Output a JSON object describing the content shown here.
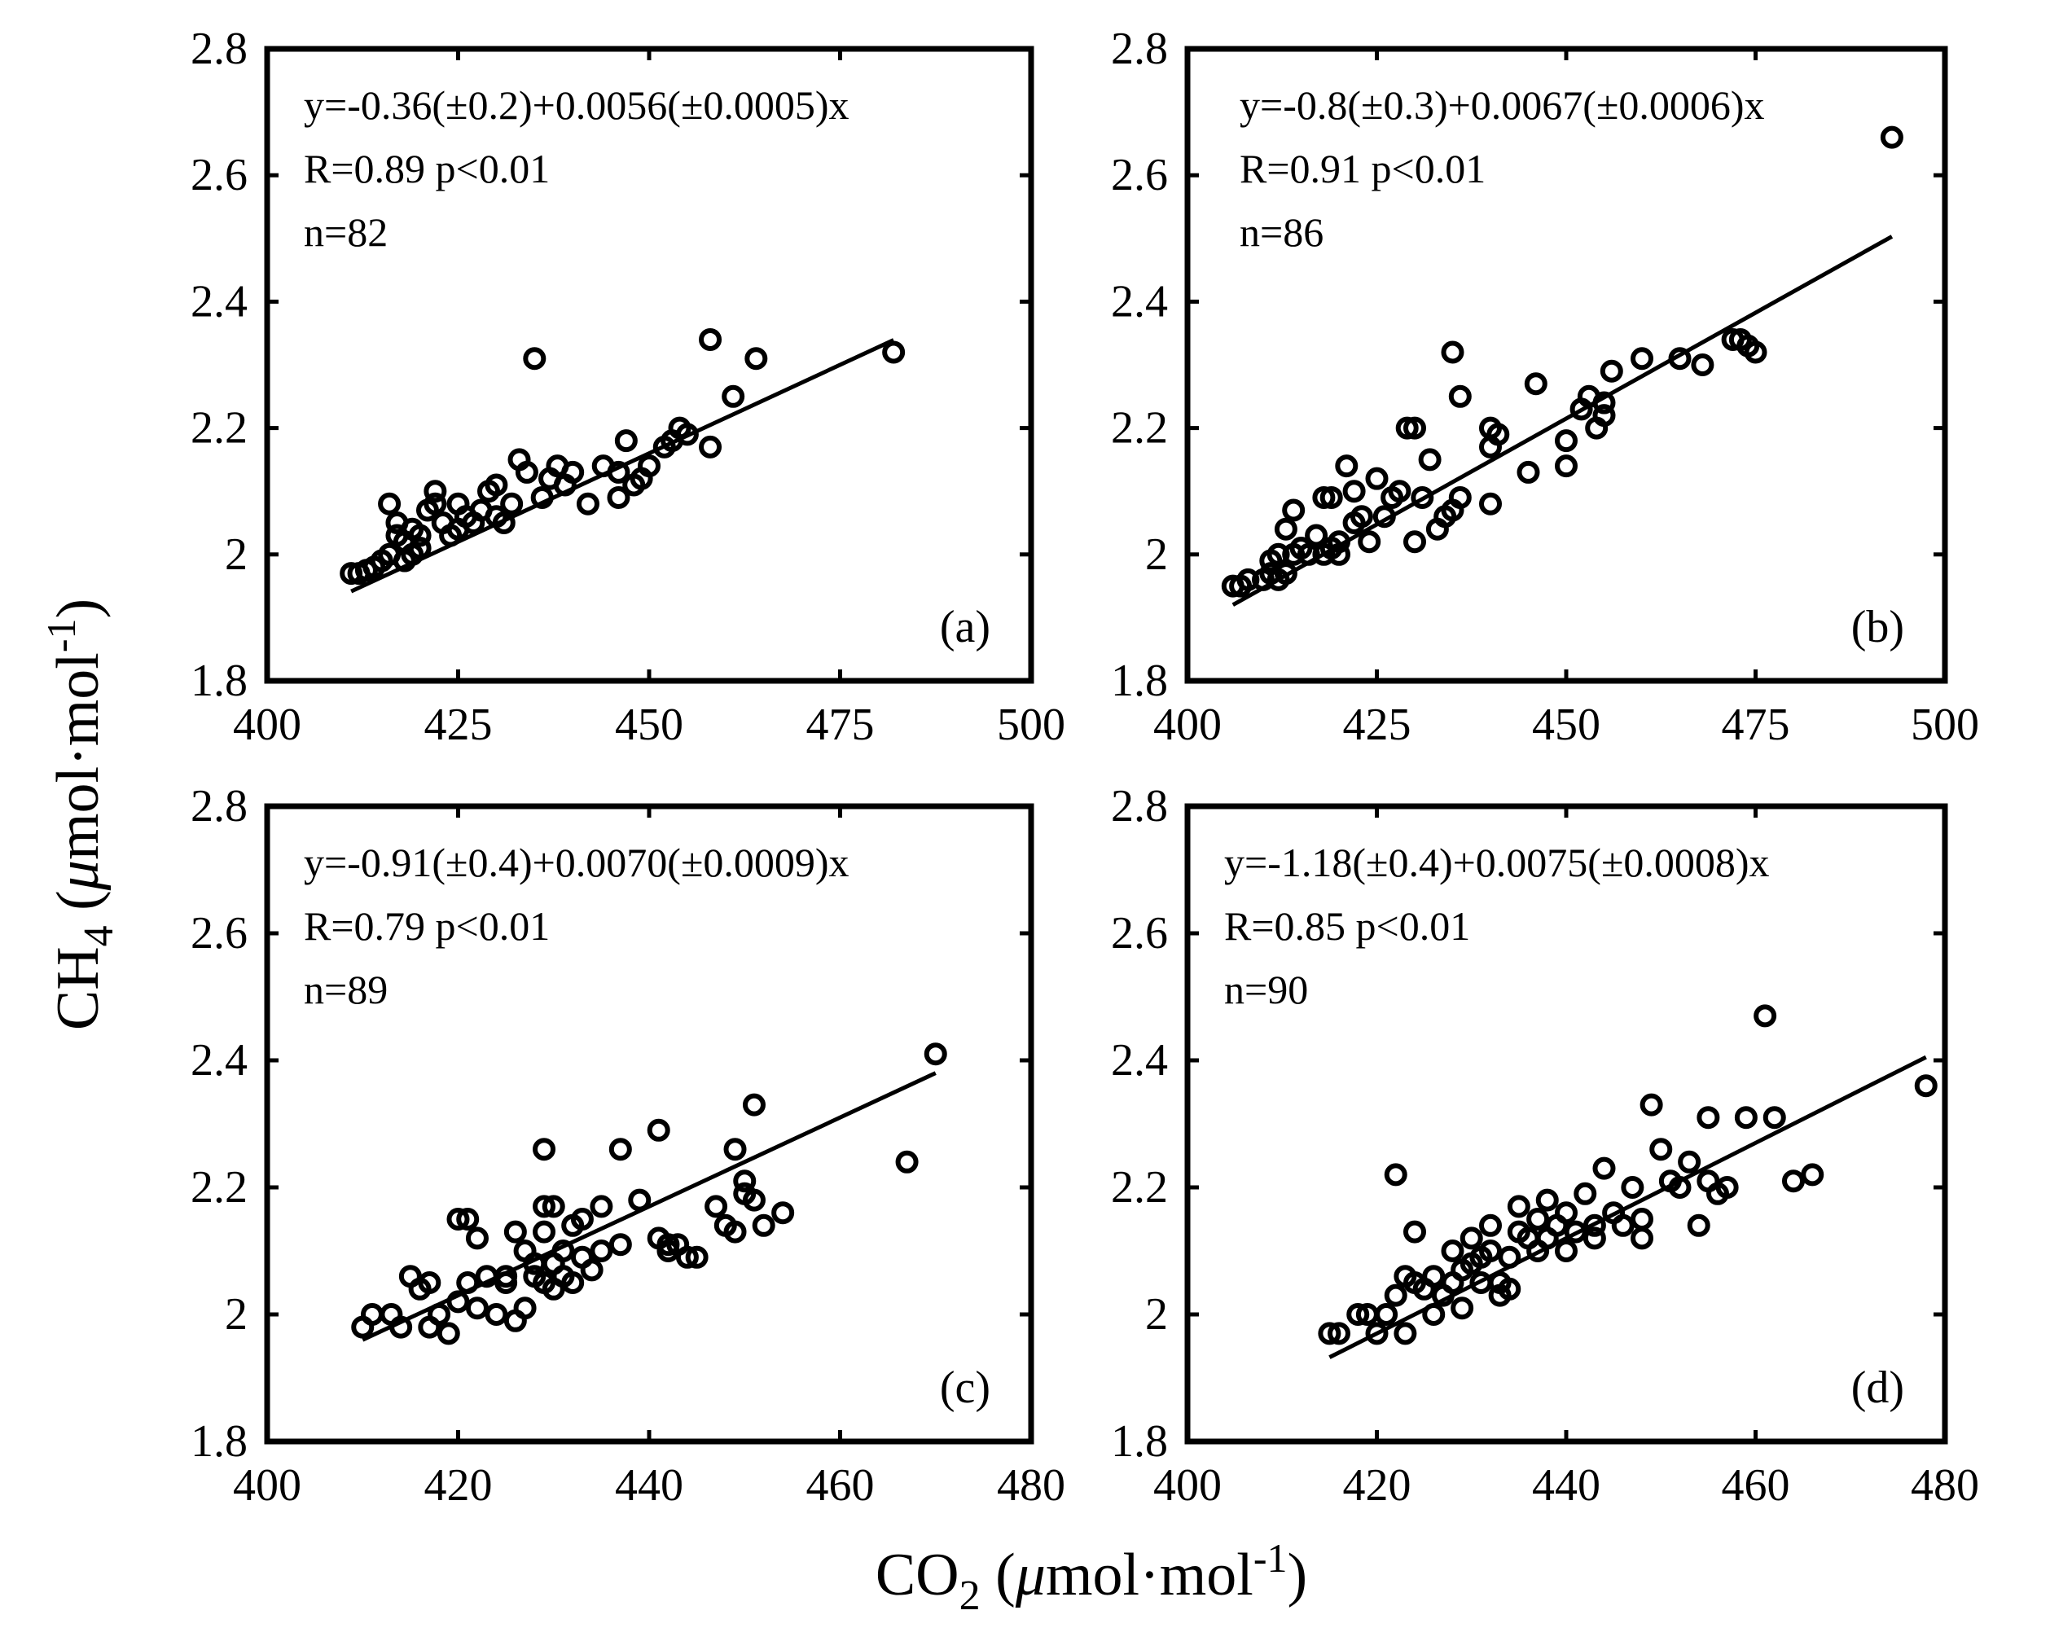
{
  "figure": {
    "ylabel": {
      "main": "CH",
      "sub": "4",
      "unit_open": " (",
      "mu": "μ",
      "unit_mid": "mol·mol",
      "sup": "-1",
      "unit_close": ")"
    },
    "xlabel": {
      "main": "CO",
      "sub": "2",
      "unit_open": " (",
      "mu": "μ",
      "unit_mid": "mol·mol",
      "sup": "-1",
      "unit_close": ")"
    }
  },
  "chart_data": [
    {
      "type": "scatter",
      "panel": "(a)",
      "equation": "y=-0.36(±0.2)+0.0056(±0.0005)x",
      "stats": "R=0.89 p<0.01",
      "n": "n=82",
      "xlim": [
        400,
        500
      ],
      "ylim": [
        1.8,
        2.8
      ],
      "xticks": [
        "400",
        "425",
        "450",
        "475",
        "500"
      ],
      "yticks": [
        "1.8",
        "2",
        "2.2",
        "2.4",
        "2.6",
        "2.8"
      ],
      "fit": {
        "intercept": -0.36,
        "slope": 0.0056,
        "x_range": [
          411,
          482
        ]
      },
      "points": [
        [
          411,
          1.97
        ],
        [
          412,
          1.97
        ],
        [
          413,
          1.975
        ],
        [
          414,
          1.98
        ],
        [
          415,
          1.99
        ],
        [
          416,
          2.0
        ],
        [
          416,
          2.08
        ],
        [
          417,
          2.03
        ],
        [
          417,
          2.05
        ],
        [
          418,
          1.99
        ],
        [
          418,
          2.02
        ],
        [
          419,
          2.0
        ],
        [
          419,
          2.04
        ],
        [
          420,
          2.01
        ],
        [
          420,
          2.03
        ],
        [
          421,
          2.07
        ],
        [
          422,
          2.08
        ],
        [
          422,
          2.1
        ],
        [
          423,
          2.05
        ],
        [
          424,
          2.03
        ],
        [
          425,
          2.04
        ],
        [
          425,
          2.08
        ],
        [
          426,
          2.06
        ],
        [
          427,
          2.05
        ],
        [
          428,
          2.07
        ],
        [
          429,
          2.1
        ],
        [
          430,
          2.06
        ],
        [
          430,
          2.11
        ],
        [
          431,
          2.05
        ],
        [
          432,
          2.08
        ],
        [
          433,
          2.15
        ],
        [
          434,
          2.13
        ],
        [
          435,
          2.31
        ],
        [
          436,
          2.09
        ],
        [
          437,
          2.12
        ],
        [
          438,
          2.14
        ],
        [
          439,
          2.11
        ],
        [
          440,
          2.13
        ],
        [
          442,
          2.08
        ],
        [
          444,
          2.14
        ],
        [
          446,
          2.09
        ],
        [
          446,
          2.13
        ],
        [
          447,
          2.18
        ],
        [
          448,
          2.11
        ],
        [
          449,
          2.12
        ],
        [
          450,
          2.14
        ],
        [
          452,
          2.17
        ],
        [
          453,
          2.18
        ],
        [
          454,
          2.2
        ],
        [
          455,
          2.19
        ],
        [
          458,
          2.34
        ],
        [
          458,
          2.17
        ],
        [
          461,
          2.25
        ],
        [
          464,
          2.31
        ],
        [
          482,
          2.32
        ]
      ]
    },
    {
      "type": "scatter",
      "panel": "(b)",
      "equation": "y=-0.8(±0.3)+0.0067(±0.0006)x",
      "stats": "R=0.91 p<0.01",
      "n": "n=86",
      "xlim": [
        400,
        500
      ],
      "ylim": [
        1.8,
        2.8
      ],
      "xticks": [
        "400",
        "425",
        "450",
        "475",
        "500"
      ],
      "yticks": [
        "1.8",
        "2",
        "2.2",
        "2.4",
        "2.6",
        "2.8"
      ],
      "fit": {
        "intercept": -0.8,
        "slope": 0.0067,
        "x_range": [
          406,
          493
        ]
      },
      "points": [
        [
          406,
          1.95
        ],
        [
          407,
          1.95
        ],
        [
          408,
          1.96
        ],
        [
          410,
          1.96
        ],
        [
          411,
          1.97
        ],
        [
          411,
          1.99
        ],
        [
          412,
          1.96
        ],
        [
          412,
          2.0
        ],
        [
          413,
          2.04
        ],
        [
          413,
          1.97
        ],
        [
          414,
          2.07
        ],
        [
          414,
          2.0
        ],
        [
          415,
          2.01
        ],
        [
          416,
          2.0
        ],
        [
          417,
          2.03
        ],
        [
          418,
          2.0
        ],
        [
          418,
          2.09
        ],
        [
          419,
          2.01
        ],
        [
          419,
          2.09
        ],
        [
          420,
          2.0
        ],
        [
          420,
          2.02
        ],
        [
          421,
          2.14
        ],
        [
          422,
          2.05
        ],
        [
          422,
          2.1
        ],
        [
          423,
          2.06
        ],
        [
          424,
          2.02
        ],
        [
          425,
          2.12
        ],
        [
          426,
          2.06
        ],
        [
          427,
          2.09
        ],
        [
          428,
          2.1
        ],
        [
          429,
          2.2
        ],
        [
          430,
          2.02
        ],
        [
          430,
          2.2
        ],
        [
          431,
          2.09
        ],
        [
          432,
          2.15
        ],
        [
          433,
          2.04
        ],
        [
          434,
          2.06
        ],
        [
          435,
          2.32
        ],
        [
          435,
          2.07
        ],
        [
          436,
          2.25
        ],
        [
          436,
          2.09
        ],
        [
          440,
          2.08
        ],
        [
          440,
          2.17
        ],
        [
          440,
          2.2
        ],
        [
          441,
          2.19
        ],
        [
          445,
          2.13
        ],
        [
          446,
          2.27
        ],
        [
          450,
          2.14
        ],
        [
          450,
          2.18
        ],
        [
          452,
          2.23
        ],
        [
          453,
          2.25
        ],
        [
          454,
          2.2
        ],
        [
          455,
          2.22
        ],
        [
          455,
          2.24
        ],
        [
          456,
          2.29
        ],
        [
          460,
          2.31
        ],
        [
          465,
          2.31
        ],
        [
          468,
          2.3
        ],
        [
          472,
          2.34
        ],
        [
          473,
          2.34
        ],
        [
          474,
          2.33
        ],
        [
          475,
          2.32
        ],
        [
          493,
          2.66
        ]
      ]
    },
    {
      "type": "scatter",
      "panel": "(c)",
      "equation": "y=-0.91(±0.4)+0.0070(±0.0009)x",
      "stats": "R=0.79 p<0.01",
      "n": "n=89",
      "xlim": [
        400,
        480
      ],
      "ylim": [
        1.8,
        2.8
      ],
      "xticks": [
        "400",
        "420",
        "440",
        "460",
        "480"
      ],
      "yticks": [
        "1.8",
        "2",
        "2.2",
        "2.4",
        "2.6",
        "2.8"
      ],
      "fit": {
        "intercept": -0.91,
        "slope": 0.007,
        "x_range": [
          410,
          470
        ]
      },
      "points": [
        [
          410,
          1.98
        ],
        [
          411,
          2.0
        ],
        [
          413,
          2.0
        ],
        [
          414,
          1.98
        ],
        [
          415,
          2.06
        ],
        [
          416,
          2.04
        ],
        [
          417,
          2.05
        ],
        [
          417,
          1.98
        ],
        [
          418,
          2.0
        ],
        [
          419,
          1.97
        ],
        [
          420,
          2.02
        ],
        [
          420,
          2.15
        ],
        [
          421,
          2.05
        ],
        [
          421,
          2.15
        ],
        [
          422,
          2.12
        ],
        [
          422,
          2.01
        ],
        [
          423,
          2.06
        ],
        [
          424,
          2.0
        ],
        [
          425,
          2.05
        ],
        [
          425,
          2.06
        ],
        [
          426,
          1.99
        ],
        [
          426,
          2.13
        ],
        [
          427,
          2.1
        ],
        [
          427,
          2.01
        ],
        [
          428,
          2.06
        ],
        [
          428,
          2.08
        ],
        [
          429,
          2.05
        ],
        [
          429,
          2.17
        ],
        [
          429,
          2.26
        ],
        [
          429,
          2.13
        ],
        [
          430,
          2.08
        ],
        [
          430,
          2.17
        ],
        [
          430,
          2.04
        ],
        [
          431,
          2.06
        ],
        [
          431,
          2.1
        ],
        [
          432,
          2.05
        ],
        [
          432,
          2.14
        ],
        [
          433,
          2.09
        ],
        [
          433,
          2.15
        ],
        [
          434,
          2.07
        ],
        [
          435,
          2.17
        ],
        [
          435,
          2.1
        ],
        [
          437,
          2.11
        ],
        [
          437,
          2.26
        ],
        [
          439,
          2.18
        ],
        [
          441,
          2.29
        ],
        [
          441,
          2.12
        ],
        [
          442,
          2.11
        ],
        [
          442,
          2.1
        ],
        [
          443,
          2.11
        ],
        [
          444,
          2.09
        ],
        [
          445,
          2.09
        ],
        [
          447,
          2.17
        ],
        [
          448,
          2.14
        ],
        [
          449,
          2.13
        ],
        [
          449,
          2.26
        ],
        [
          450,
          2.21
        ],
        [
          450,
          2.19
        ],
        [
          451,
          2.18
        ],
        [
          451,
          2.33
        ],
        [
          452,
          2.14
        ],
        [
          454,
          2.16
        ],
        [
          467,
          2.24
        ],
        [
          470,
          2.41
        ]
      ]
    },
    {
      "type": "scatter",
      "panel": "(d)",
      "equation": "y=-1.18(±0.4)+0.0075(±0.0008)x",
      "stats": "R=0.85 p<0.01",
      "n": "n=90",
      "xlim": [
        400,
        480
      ],
      "ylim": [
        1.8,
        2.8
      ],
      "xticks": [
        "400",
        "420",
        "440",
        "460",
        "480"
      ],
      "yticks": [
        "1.8",
        "2",
        "2.2",
        "2.4",
        "2.6",
        "2.8"
      ],
      "fit": {
        "intercept": -1.18,
        "slope": 0.0075,
        "x_range": [
          415,
          478
        ]
      },
      "points": [
        [
          415,
          1.97
        ],
        [
          416,
          1.97
        ],
        [
          418,
          2.0
        ],
        [
          419,
          2.0
        ],
        [
          420,
          1.97
        ],
        [
          421,
          2.0
        ],
        [
          422,
          2.03
        ],
        [
          422,
          2.22
        ],
        [
          423,
          1.97
        ],
        [
          423,
          2.06
        ],
        [
          424,
          2.13
        ],
        [
          424,
          2.05
        ],
        [
          425,
          2.04
        ],
        [
          426,
          2.06
        ],
        [
          426,
          2.0
        ],
        [
          427,
          2.03
        ],
        [
          428,
          2.05
        ],
        [
          428,
          2.1
        ],
        [
          429,
          2.01
        ],
        [
          429,
          2.07
        ],
        [
          430,
          2.08
        ],
        [
          430,
          2.12
        ],
        [
          431,
          2.05
        ],
        [
          431,
          2.09
        ],
        [
          432,
          2.14
        ],
        [
          432,
          2.1
        ],
        [
          433,
          2.05
        ],
        [
          433,
          2.03
        ],
        [
          434,
          2.09
        ],
        [
          434,
          2.04
        ],
        [
          435,
          2.13
        ],
        [
          435,
          2.17
        ],
        [
          436,
          2.12
        ],
        [
          437,
          2.15
        ],
        [
          437,
          2.1
        ],
        [
          438,
          2.18
        ],
        [
          438,
          2.12
        ],
        [
          439,
          2.14
        ],
        [
          440,
          2.1
        ],
        [
          440,
          2.16
        ],
        [
          441,
          2.13
        ],
        [
          442,
          2.19
        ],
        [
          443,
          2.14
        ],
        [
          443,
          2.12
        ],
        [
          444,
          2.23
        ],
        [
          445,
          2.16
        ],
        [
          446,
          2.14
        ],
        [
          447,
          2.2
        ],
        [
          448,
          2.15
        ],
        [
          448,
          2.12
        ],
        [
          449,
          2.33
        ],
        [
          450,
          2.26
        ],
        [
          451,
          2.21
        ],
        [
          452,
          2.2
        ],
        [
          453,
          2.24
        ],
        [
          454,
          2.14
        ],
        [
          455,
          2.21
        ],
        [
          455,
          2.31
        ],
        [
          456,
          2.19
        ],
        [
          457,
          2.2
        ],
        [
          459,
          2.31
        ],
        [
          461,
          2.47
        ],
        [
          462,
          2.31
        ],
        [
          464,
          2.21
        ],
        [
          466,
          2.22
        ],
        [
          478,
          2.36
        ]
      ]
    }
  ]
}
